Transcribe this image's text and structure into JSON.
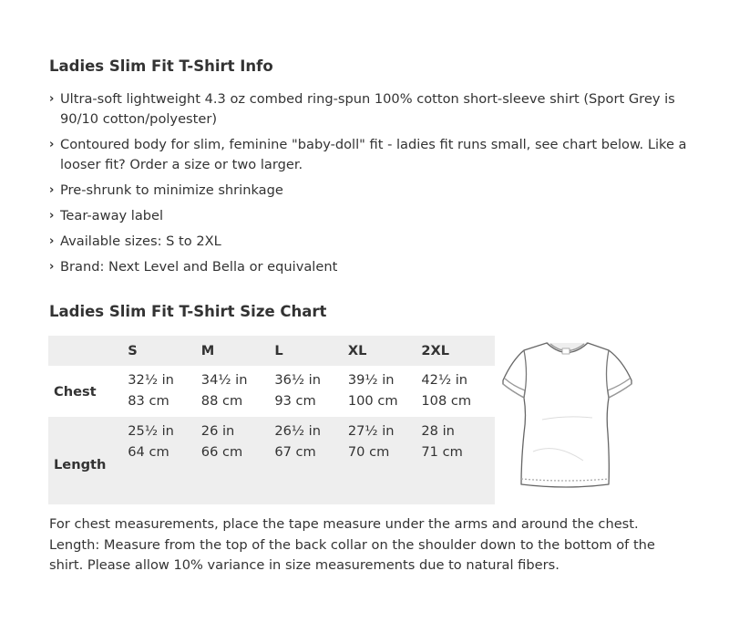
{
  "info": {
    "title": "Ladies Slim Fit T-Shirt Info",
    "bullet_icon": "chevron-right-icon",
    "items": [
      "Ultra-soft lightweight 4.3 oz combed ring-spun 100% cotton short-sleeve shirt (Sport Grey is 90/10 cotton/polyester)",
      "Contoured body for slim, feminine \"baby-doll\" fit - ladies fit runs small, see chart below. Like a looser fit? Order a size or two larger.",
      "Pre-shrunk to minimize shrinkage",
      "Tear-away label",
      "Available sizes: S to 2XL",
      "Brand: Next Level and Bella or equivalent"
    ]
  },
  "size_chart": {
    "title": "Ladies Slim Fit T-Shirt Size Chart",
    "sizes": [
      "S",
      "M",
      "L",
      "XL",
      "2XL"
    ],
    "rows": [
      {
        "label": "Chest",
        "in": [
          "32½ in",
          "34½ in",
          "36½ in",
          "39½ in",
          "42½ in"
        ],
        "cm": [
          "83 cm",
          "88 cm",
          "93 cm",
          "100 cm",
          "108 cm"
        ]
      },
      {
        "label": "Length",
        "in": [
          "25½ in",
          "26 in",
          "26½ in",
          "27½ in",
          "28 in"
        ],
        "cm": [
          "64 cm",
          "66 cm",
          "67 cm",
          "70 cm",
          "71 cm"
        ]
      }
    ],
    "image": "tshirt-outline-illustration",
    "note": "For chest measurements, place the tape measure under the arms and around the chest. Length: Measure from the top of the back collar on the shoulder down to the bottom of the shirt. Please allow 10% variance in size measurements due to natural fibers."
  },
  "colors": {
    "text": "#333333",
    "row_shade": "#eeeeee"
  }
}
